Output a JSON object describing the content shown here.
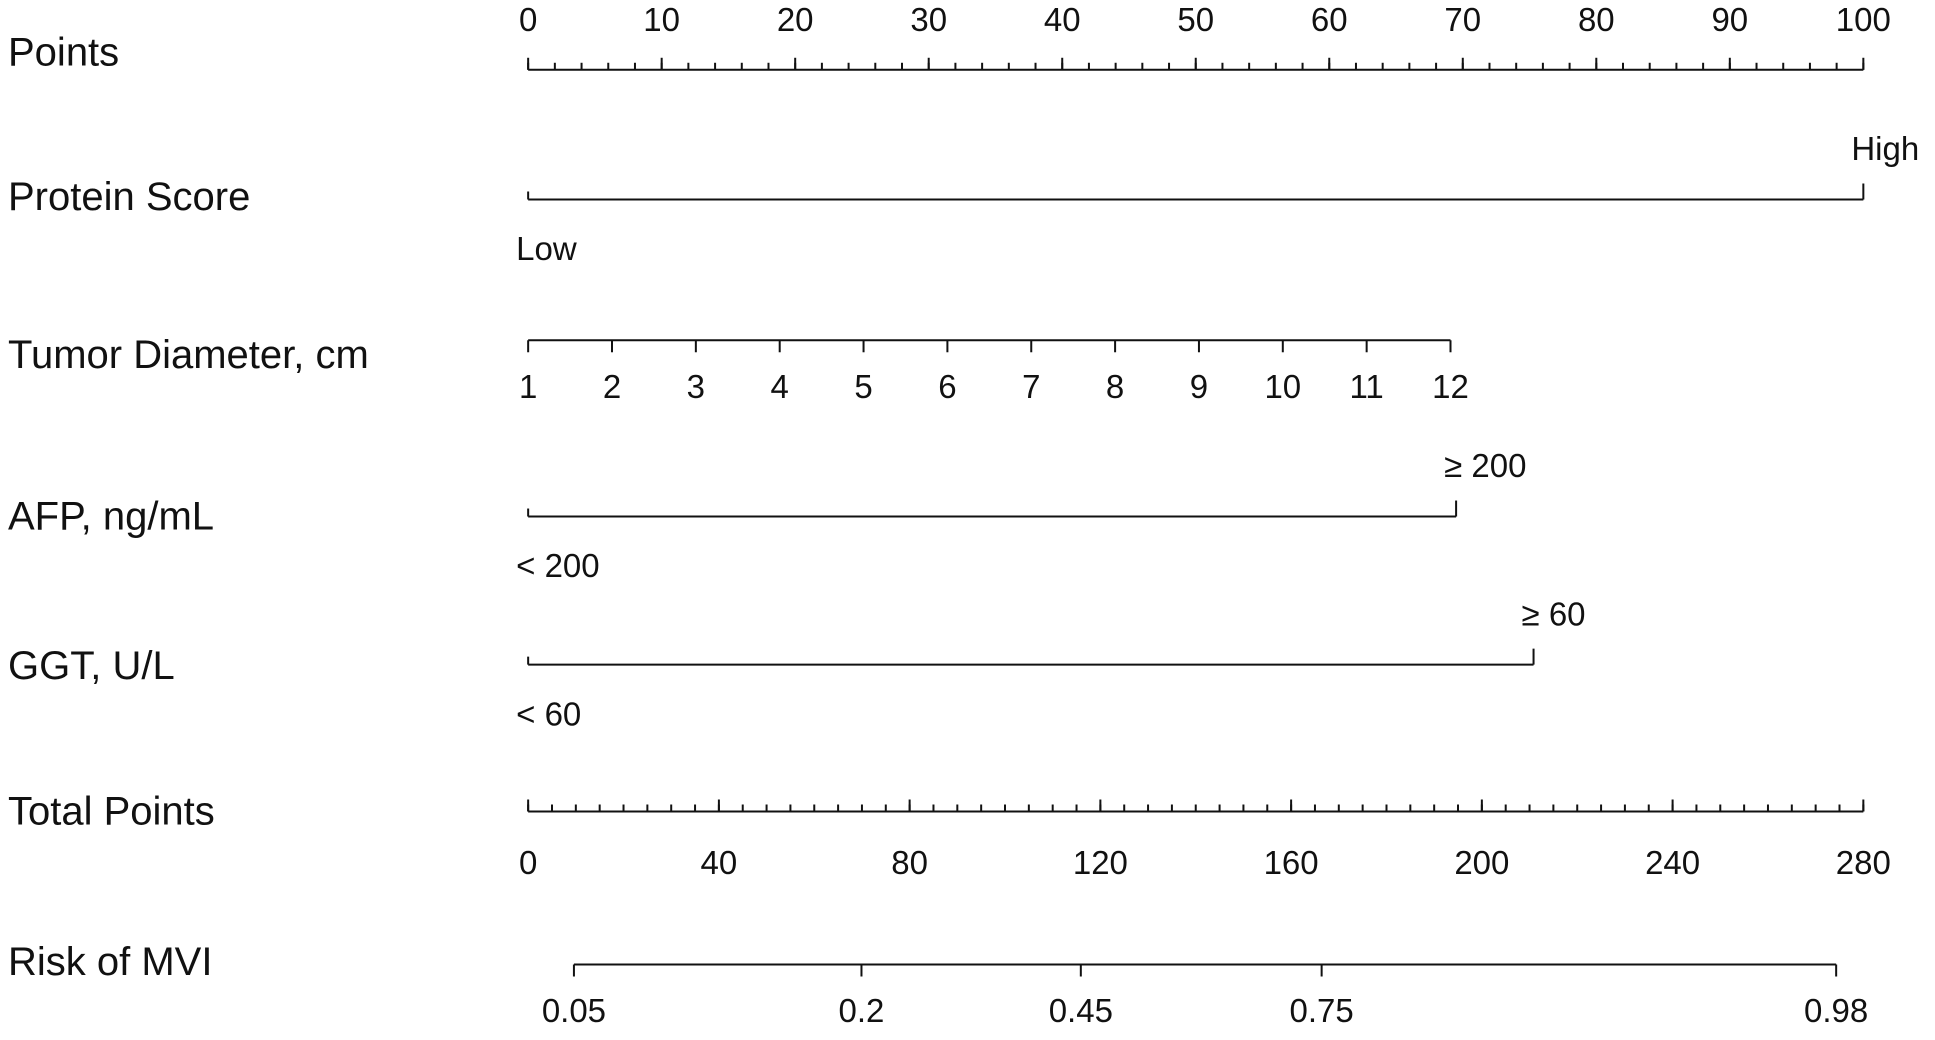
{
  "chart_data": {
    "type": "nomogram",
    "xlim": [
      0,
      100
    ],
    "rows": [
      {
        "label": "Points",
        "ticks": [
          0,
          10,
          20,
          30,
          40,
          50,
          60,
          70,
          80,
          90,
          100
        ],
        "minor_tick_step": 2
      },
      {
        "label": "Protein Score",
        "levels": [
          "Low",
          "High"
        ],
        "points": [
          0,
          100
        ]
      },
      {
        "label": "Tumor Diameter, cm",
        "ticks": [
          1,
          2,
          3,
          4,
          5,
          6,
          7,
          8,
          9,
          10,
          11,
          12
        ],
        "points": [
          0,
          6.28,
          12.56,
          18.84,
          25.12,
          31.4,
          37.68,
          43.96,
          50.24,
          56.52,
          62.8,
          69.08
        ]
      },
      {
        "label": "AFP, ng/mL",
        "levels": [
          "< 200",
          "≥ 200"
        ],
        "points": [
          0,
          69.5
        ]
      },
      {
        "label": "GGT, U/L",
        "levels": [
          "< 60",
          "≥ 60"
        ],
        "points": [
          0,
          75.3
        ]
      },
      {
        "label": "Total Points",
        "ticks": [
          0,
          40,
          80,
          120,
          160,
          200,
          240,
          280
        ],
        "xlim": [
          0,
          280
        ],
        "minor_tick_step": 5
      },
      {
        "label": "Risk of MVI",
        "ticks": [
          0.05,
          0.2,
          0.45,
          0.75,
          0.98
        ],
        "total_points": [
          9.6,
          69.9,
          115.9,
          166.4,
          274.3
        ]
      }
    ]
  }
}
